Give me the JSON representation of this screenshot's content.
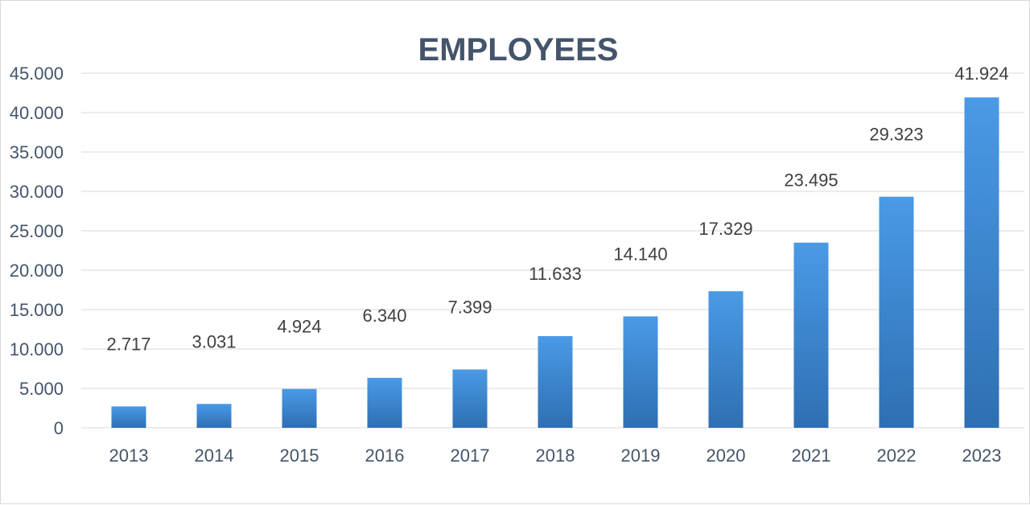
{
  "chart_data": {
    "type": "bar",
    "title": "EMPLOYEES",
    "xlabel": "",
    "ylabel": "",
    "categories": [
      "2013",
      "2014",
      "2015",
      "2016",
      "2017",
      "2018",
      "2019",
      "2020",
      "2021",
      "2022",
      "2023"
    ],
    "values": [
      2717,
      3031,
      4924,
      6340,
      7399,
      11633,
      14140,
      17329,
      23495,
      29323,
      41924
    ],
    "data_labels": [
      "2.717",
      "3.031",
      "4.924",
      "6.340",
      "7.399",
      "11.633",
      "14.140",
      "17.329",
      "23.495",
      "29.323",
      "41.924"
    ],
    "yticks": [
      "0",
      "5.000",
      "10.000",
      "15.000",
      "20.000",
      "25.000",
      "30.000",
      "35.000",
      "40.000",
      "45.000"
    ],
    "ylim": [
      0,
      45000
    ],
    "grid": true,
    "legend": "none",
    "colors": {
      "bar_top": "#4a9ae6",
      "bar_bottom": "#2e6fb3",
      "gridline": "#d9d9d9",
      "axis_text": "#44546a",
      "title": "#44546a"
    }
  }
}
